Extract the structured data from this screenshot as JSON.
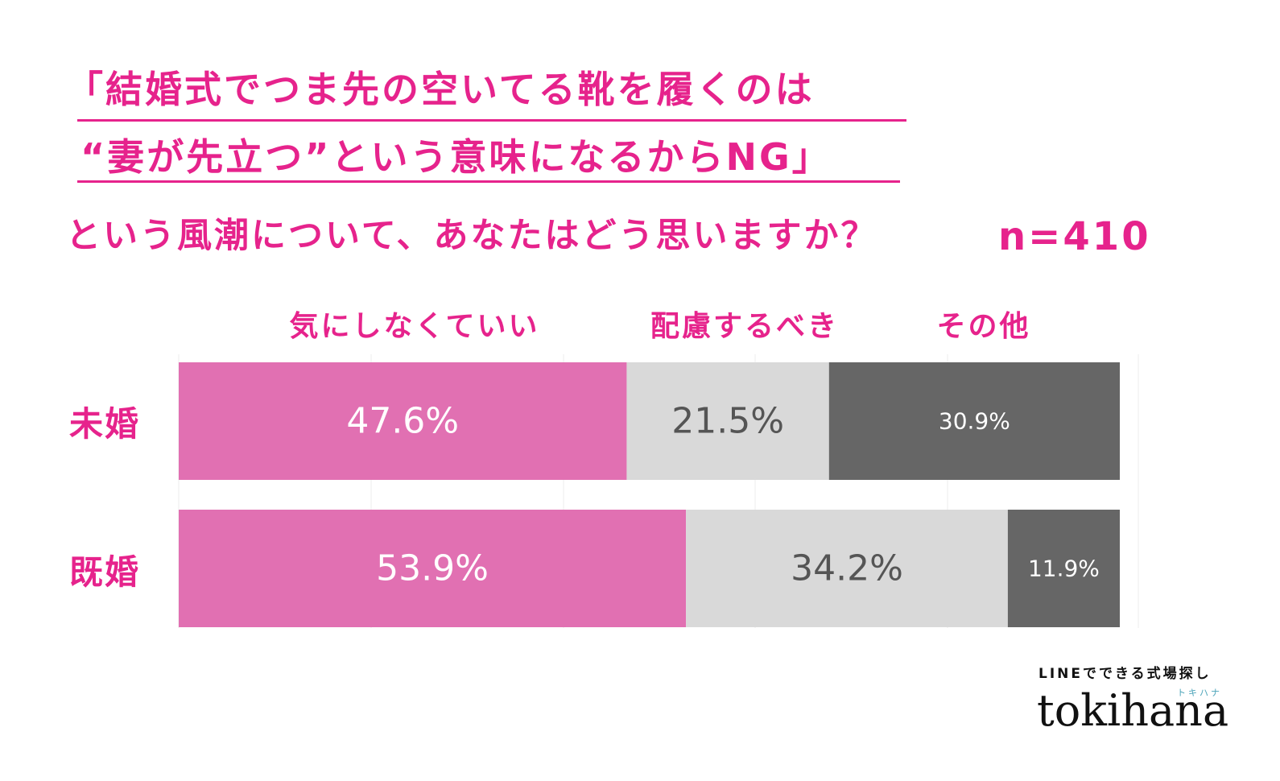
{
  "title": {
    "line1": "「結婚式でつま先の空いてる靴を履くのは",
    "line2": "“妻が先立つ”という意味になるからNG」",
    "line3": "という風潮について、あなたはどう思いますか？",
    "sample_size": "n=410"
  },
  "colors": {
    "accent": "#e6238c",
    "pink_bar": "#e170b2",
    "light_gray_bar": "#d9d9d9",
    "dark_gray_bar": "#666666",
    "label_dark": "#555555",
    "brand_teal": "#4aa3b8"
  },
  "chart_data": {
    "type": "bar",
    "orientation": "horizontal",
    "stacked": true,
    "normalized": true,
    "categories": [
      "未婚",
      "既婚"
    ],
    "series": [
      {
        "name": "気にしなくていい",
        "values": [
          47.6,
          53.9
        ],
        "color": "#e170b2",
        "label_color": "#ffffff"
      },
      {
        "name": "配慮するべき",
        "values": [
          21.5,
          34.2
        ],
        "color": "#d9d9d9",
        "label_color": "#555555"
      },
      {
        "name": "その他",
        "values": [
          30.9,
          11.9
        ],
        "color": "#666666",
        "label_color": "#ffffff"
      }
    ],
    "data_labels": [
      [
        "47.6%",
        "53.9%"
      ],
      [
        "21.5%",
        "34.2%"
      ],
      [
        "30.9%",
        "11.9%"
      ]
    ],
    "xlim": [
      0,
      100
    ],
    "legend_position": "top",
    "grid": true
  },
  "brand": {
    "tagline": "LINEでできる式場探し",
    "kana": "トキハナ",
    "name": "tokihana"
  }
}
